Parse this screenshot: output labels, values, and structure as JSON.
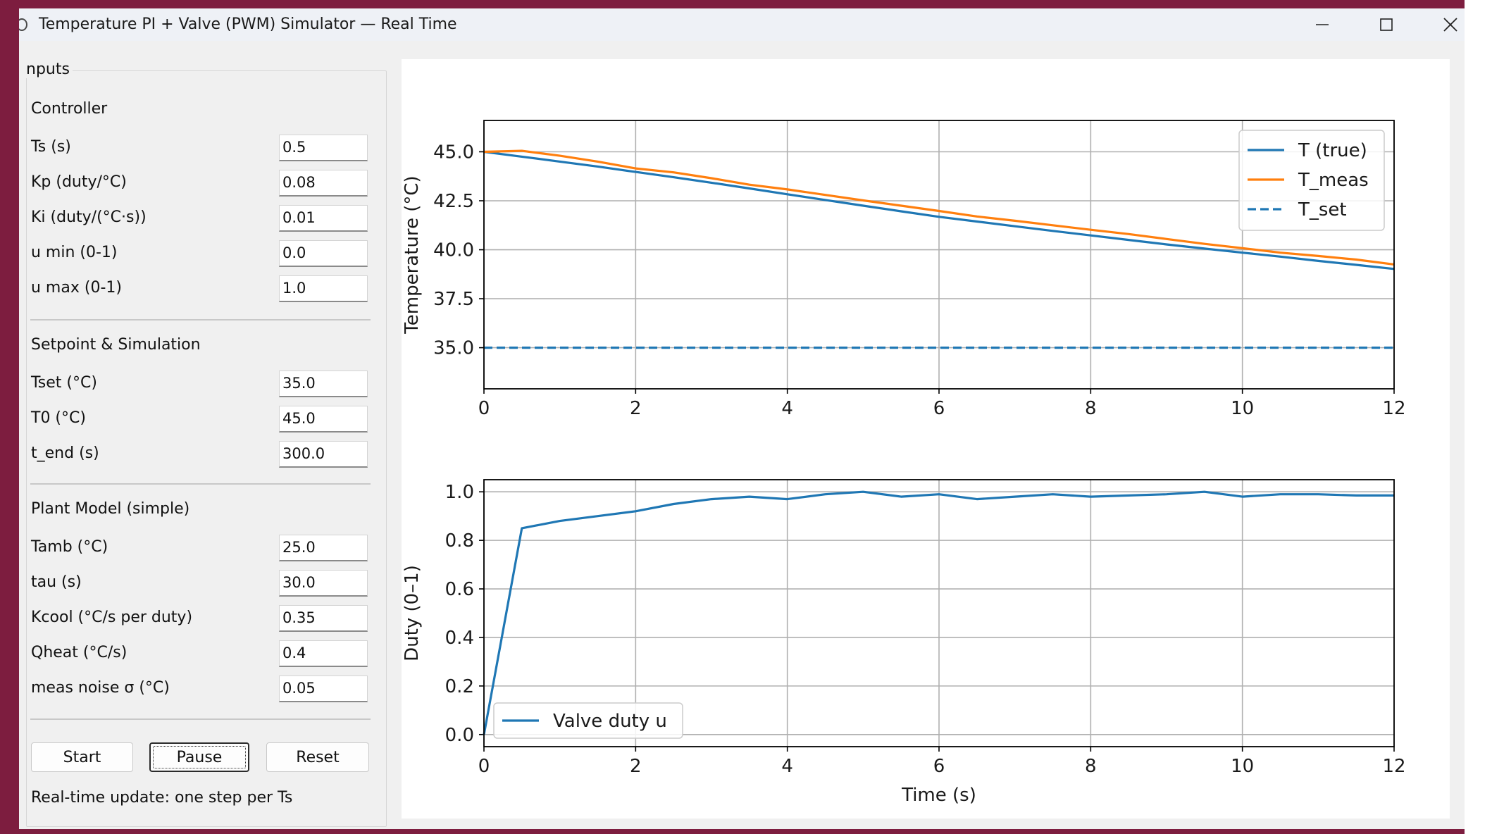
{
  "window": {
    "title": "Temperature PI + Valve (PWM) Simulator — Real Time"
  },
  "inputs": {
    "group_title": "nputs",
    "sections": [
      {
        "title": "Controller",
        "fields": [
          {
            "label": "Ts (s)",
            "value": "0.5"
          },
          {
            "label": "Kp (duty/°C)",
            "value": "0.08"
          },
          {
            "label": "Ki (duty/(°C·s))",
            "value": "0.01"
          },
          {
            "label": "u min (0-1)",
            "value": "0.0"
          },
          {
            "label": "u max (0-1)",
            "value": "1.0"
          }
        ]
      },
      {
        "title": "Setpoint & Simulation",
        "fields": [
          {
            "label": "Tset (°C)",
            "value": "35.0"
          },
          {
            "label": "T0 (°C)",
            "value": "45.0"
          },
          {
            "label": "t_end (s)",
            "value": "300.0"
          }
        ]
      },
      {
        "title": "Plant Model (simple)",
        "fields": [
          {
            "label": "Tamb (°C)",
            "value": "25.0"
          },
          {
            "label": "tau (s)",
            "value": "30.0"
          },
          {
            "label": "Kcool (°C/s per duty)",
            "value": "0.35"
          },
          {
            "label": "Qheat (°C/s)",
            "value": "0.4"
          },
          {
            "label": "meas noise σ (°C)",
            "value": "0.05"
          }
        ]
      }
    ],
    "buttons": {
      "start": "Start",
      "pause": "Pause",
      "reset": "Reset"
    },
    "status": "Real-time update: one step per Ts"
  },
  "colors": {
    "blue": "#1f77b4",
    "orange": "#ff7f0e"
  },
  "chart_data": [
    {
      "type": "line",
      "title": "",
      "xlabel": "",
      "ylabel": "Temperature (°C)",
      "xlim": [
        0,
        12
      ],
      "ylim": [
        32.9,
        46.6
      ],
      "xticks": [
        "0",
        "2",
        "4",
        "6",
        "8",
        "10",
        "12"
      ],
      "yticks": [
        "35.0",
        "37.5",
        "40.0",
        "42.5",
        "45.0"
      ],
      "grid": true,
      "legend_position": "top-right",
      "series": [
        {
          "name": "T (true)",
          "color": "#1f77b4",
          "style": "solid",
          "x": [
            0,
            0.5,
            1,
            1.5,
            2,
            2.5,
            3,
            3.5,
            4,
            4.5,
            5,
            5.5,
            6,
            6.5,
            7,
            7.5,
            8,
            8.5,
            9,
            9.5,
            10,
            10.5,
            11,
            11.5,
            12
          ],
          "y": [
            45.0,
            44.75,
            44.5,
            44.25,
            43.97,
            43.7,
            43.42,
            43.13,
            42.83,
            42.54,
            42.25,
            41.96,
            41.68,
            41.44,
            41.2,
            40.96,
            40.73,
            40.5,
            40.27,
            40.06,
            39.85,
            39.65,
            39.43,
            39.23,
            39.02
          ]
        },
        {
          "name": "T_meas",
          "color": "#ff7f0e",
          "style": "solid",
          "x": [
            0,
            0.5,
            1,
            1.5,
            2,
            2.5,
            3,
            3.5,
            4,
            4.5,
            5,
            5.5,
            6,
            6.5,
            7,
            7.5,
            8,
            8.5,
            9,
            9.5,
            10,
            10.5,
            11,
            11.5,
            12
          ],
          "y": [
            45.0,
            45.05,
            44.8,
            44.5,
            44.15,
            43.95,
            43.65,
            43.32,
            43.08,
            42.8,
            42.52,
            42.25,
            41.98,
            41.7,
            41.48,
            41.25,
            41.02,
            40.8,
            40.55,
            40.3,
            40.08,
            39.85,
            39.68,
            39.5,
            39.25
          ]
        },
        {
          "name": "T_set",
          "color": "#1f77b4",
          "style": "dashed",
          "x": [
            0,
            12
          ],
          "y": [
            35.0,
            35.0
          ]
        }
      ]
    },
    {
      "type": "line",
      "title": "",
      "xlabel": "Time (s)",
      "ylabel": "Duty (0–1)",
      "xlim": [
        0,
        12
      ],
      "ylim": [
        -0.05,
        1.05
      ],
      "xticks": [
        "0",
        "2",
        "4",
        "6",
        "8",
        "10",
        "12"
      ],
      "yticks": [
        "0.0",
        "0.2",
        "0.4",
        "0.6",
        "0.8",
        "1.0"
      ],
      "grid": true,
      "legend_position": "bottom-left",
      "series": [
        {
          "name": "Valve duty u",
          "color": "#1f77b4",
          "style": "solid",
          "x": [
            0,
            0.5,
            1,
            1.5,
            2,
            2.5,
            3,
            3.5,
            4,
            4.5,
            5,
            5.5,
            6,
            6.5,
            7,
            7.5,
            8,
            8.5,
            9,
            9.5,
            10,
            10.5,
            11,
            11.5,
            12
          ],
          "y": [
            0.0,
            0.85,
            0.88,
            0.9,
            0.92,
            0.95,
            0.97,
            0.98,
            0.97,
            0.99,
            1.0,
            0.98,
            0.99,
            0.97,
            0.98,
            0.99,
            0.98,
            0.985,
            0.99,
            1.0,
            0.98,
            0.99,
            0.99,
            0.985,
            0.985
          ]
        }
      ]
    }
  ]
}
